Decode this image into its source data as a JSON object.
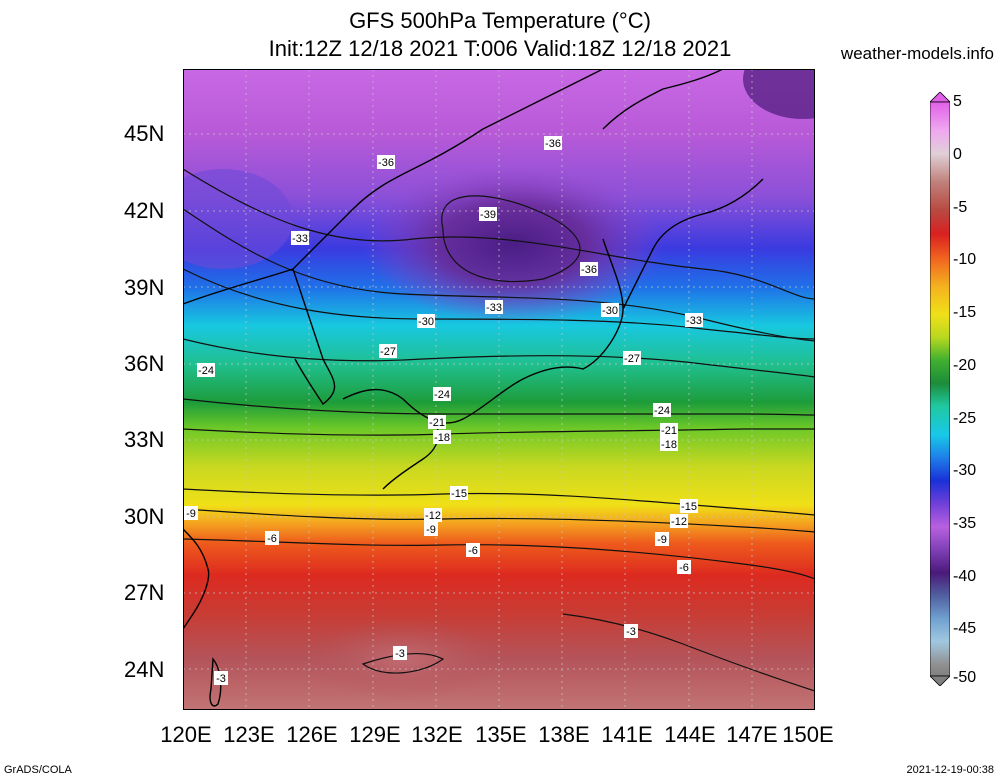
{
  "title_line1": "GFS 500hPa Temperature (°C)",
  "title_line2": "Init:12Z 12/18 2021 T:006 Valid:18Z 12/18 2021",
  "site": "weather-models.info",
  "footer_left": "GrADS/COLA",
  "footer_right": "2021-12-19-00:38",
  "lat_labels": [
    "45N",
    "42N",
    "39N",
    "36N",
    "33N",
    "30N",
    "27N",
    "24N"
  ],
  "lon_labels": [
    "120E",
    "123E",
    "126E",
    "129E",
    "132E",
    "135E",
    "138E",
    "141E",
    "144E",
    "147E",
    "150E"
  ],
  "colorbar_labels": [
    "5",
    "0",
    "-5",
    "-10",
    "-15",
    "-20",
    "-25",
    "-30",
    "-35",
    "-40",
    "-45",
    "-50"
  ],
  "contour_labels": [
    "-36",
    "-36",
    "-33",
    "-39",
    "-36",
    "-33",
    "-30",
    "-30",
    "-33",
    "-27",
    "-24",
    "-27",
    "-24",
    "-24",
    "-21",
    "-18",
    "-21",
    "-18",
    "-15",
    "-15",
    "-9",
    "-12",
    "-9",
    "-12",
    "-6",
    "-6",
    "-9",
    "-6",
    "-3",
    "-3",
    "-3"
  ],
  "colors": {
    "cold_purple": "#4b1a7a",
    "violet": "#a24fd8",
    "blue": "#1f3bdc",
    "cyan": "#16c6e8",
    "green": "#1d9c3a",
    "yellow": "#e8e414",
    "orange": "#f4a020",
    "red": "#e03020",
    "dark_red": "#c43c30",
    "brownish": "#b86a64"
  }
}
